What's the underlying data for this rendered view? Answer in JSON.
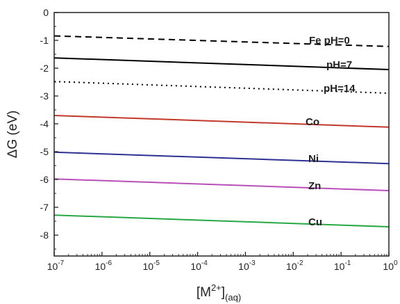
{
  "chart_data": {
    "type": "line",
    "title": "",
    "ylabel": "ΔG (eV)",
    "xlabel": {
      "base": "[M",
      "sup": "2+",
      "close": "]",
      "sub": "(aq)"
    },
    "xscale": "log",
    "xlim": [
      1e-07,
      1
    ],
    "ylim": [
      -8.6,
      0
    ],
    "x_ticks": [
      {
        "base": "10",
        "exp": "-7",
        "value": 1e-07
      },
      {
        "base": "10",
        "exp": "-6",
        "value": 1e-06
      },
      {
        "base": "10",
        "exp": "-5",
        "value": 1e-05
      },
      {
        "base": "10",
        "exp": "-4",
        "value": 0.0001
      },
      {
        "base": "10",
        "exp": "-3",
        "value": 0.001
      },
      {
        "base": "10",
        "exp": "-2",
        "value": 0.01
      },
      {
        "base": "10",
        "exp": "-1",
        "value": 0.1
      },
      {
        "base": "10",
        "exp": "0",
        "value": 1
      }
    ],
    "y_ticks": [
      "0",
      "-1",
      "-2",
      "-3",
      "-4",
      "-5",
      "-6",
      "-7",
      "-8"
    ],
    "x": [
      1e-07,
      1
    ],
    "series": [
      {
        "name": "Fe pH=0",
        "y": [
          -0.84,
          -1.22
        ],
        "color": "#000000",
        "style": "dashed"
      },
      {
        "name": "pH=7",
        "y": [
          -1.63,
          -2.05
        ],
        "color": "#000000",
        "style": "solid"
      },
      {
        "name": "pH=14",
        "y": [
          -2.48,
          -2.9
        ],
        "color": "#000000",
        "style": "dotted"
      },
      {
        "name": "Co",
        "y": [
          -3.7,
          -4.12
        ],
        "color": "#c0392b",
        "style": "solid"
      },
      {
        "name": "Ni",
        "y": [
          -5.02,
          -5.43
        ],
        "color": "#2e3192",
        "style": "solid"
      },
      {
        "name": "Zn",
        "y": [
          -5.98,
          -6.4
        ],
        "color": "#b94fb9",
        "style": "solid"
      },
      {
        "name": "Cu",
        "y": [
          -7.28,
          -7.7
        ],
        "color": "#27a844",
        "style": "solid"
      }
    ]
  }
}
